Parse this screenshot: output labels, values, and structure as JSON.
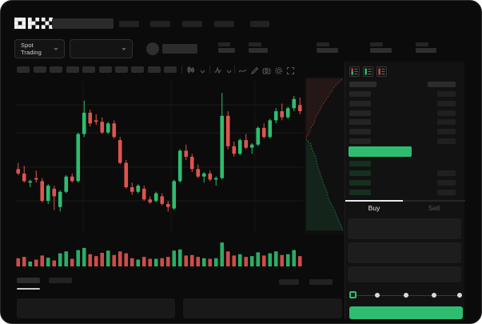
{
  "colors": {
    "up": "#2ebd70",
    "down": "#de544f",
    "bid-row": "#16301f",
    "text": "#e6e6e6",
    "muted": "#5f5f5f"
  },
  "header": {
    "logo": "OKX",
    "market_selector": {
      "label": "Spot Trading",
      "chevron_icon": "chevron-down-icon"
    },
    "nav_placeholder_count": 5
  },
  "toolbar": {
    "timeframe_placeholder_count": 10,
    "icons": [
      "candle-style-icon",
      "chevron-down-icon",
      "indicator-icon",
      "chevron-down-icon",
      "line-tool-icon",
      "edit-icon",
      "camera-icon",
      "settings-icon",
      "fullscreen-icon"
    ]
  },
  "order_book": {
    "view_toggle_icons": [
      "book-both-icon",
      "book-bids-icon",
      "book-asks-icon"
    ],
    "ask_row_count": 6,
    "bid_row_count": 4,
    "last_price_highlight_color": "#2ebd70"
  },
  "trade_panel": {
    "tabs": {
      "buy": "Buy",
      "sell": "Sell",
      "active": "Buy"
    },
    "slider_dot_count": 5,
    "buy_button_color": "#2ebd70"
  },
  "chart_data": {
    "type": "candlestick",
    "title": "",
    "xlabel": "",
    "ylabel": "",
    "price_axis": [
      0,
      100
    ],
    "grid": true,
    "candles": [
      [
        42,
        46,
        38,
        39
      ],
      [
        39,
        44,
        33,
        34
      ],
      [
        33,
        35,
        30,
        34
      ],
      [
        36,
        41,
        33,
        35
      ],
      [
        34,
        36,
        20,
        21
      ],
      [
        21,
        32,
        19,
        31
      ],
      [
        29,
        31,
        15,
        24
      ],
      [
        17,
        28,
        14,
        27
      ],
      [
        27,
        38,
        26,
        37
      ],
      [
        37,
        39,
        33,
        34
      ],
      [
        34,
        66,
        33,
        65
      ],
      [
        65,
        87,
        63,
        79
      ],
      [
        79,
        81,
        70,
        72
      ],
      [
        74,
        78,
        71,
        73
      ],
      [
        73,
        76,
        65,
        66
      ],
      [
        66,
        73,
        65,
        72
      ],
      [
        72,
        74,
        62,
        63
      ],
      [
        61,
        63,
        45,
        46
      ],
      [
        46,
        48,
        29,
        30
      ],
      [
        30,
        33,
        25,
        27
      ],
      [
        27,
        32,
        26,
        31
      ],
      [
        29,
        31,
        21,
        22
      ],
      [
        22,
        24,
        19,
        20
      ],
      [
        21,
        27,
        20,
        26
      ],
      [
        24,
        26,
        18,
        19
      ],
      [
        19,
        21,
        14,
        17
      ],
      [
        16,
        35,
        15,
        34
      ],
      [
        34,
        55,
        33,
        54
      ],
      [
        54,
        58,
        48,
        50
      ],
      [
        50,
        52,
        40,
        42
      ],
      [
        42,
        45,
        36,
        37
      ],
      [
        37,
        40,
        33,
        39
      ],
      [
        39,
        41,
        34,
        35
      ],
      [
        35,
        37,
        31,
        36
      ],
      [
        36,
        92,
        35,
        77
      ],
      [
        77,
        80,
        55,
        57
      ],
      [
        57,
        60,
        50,
        52
      ],
      [
        52,
        62,
        51,
        61
      ],
      [
        61,
        65,
        55,
        56
      ],
      [
        56,
        59,
        52,
        58
      ],
      [
        58,
        70,
        57,
        69
      ],
      [
        69,
        72,
        62,
        63
      ],
      [
        63,
        75,
        62,
        74
      ],
      [
        74,
        82,
        72,
        80
      ],
      [
        80,
        85,
        74,
        76
      ],
      [
        76,
        83,
        75,
        82
      ],
      [
        82,
        90,
        80,
        88
      ],
      [
        84,
        89,
        78,
        80
      ]
    ],
    "volume": [
      30,
      35,
      18,
      25,
      40,
      32,
      22,
      48,
      55,
      28,
      60,
      68,
      45,
      38,
      50,
      58,
      42,
      55,
      48,
      30,
      25,
      35,
      28,
      28,
      30,
      35,
      58,
      62,
      40,
      42,
      35,
      30,
      28,
      30,
      88,
      55,
      40,
      45,
      35,
      38,
      52,
      40,
      48,
      55,
      42,
      45,
      60,
      38
    ],
    "volume_axis": [
      0,
      100
    ],
    "depth_overlay": {
      "type": "area",
      "orientation": "vertical",
      "series": [
        {
          "name": "asks",
          "color": "#de544f",
          "position": "top"
        },
        {
          "name": "bids",
          "color": "#2ebd70",
          "position": "bottom"
        }
      ]
    }
  }
}
